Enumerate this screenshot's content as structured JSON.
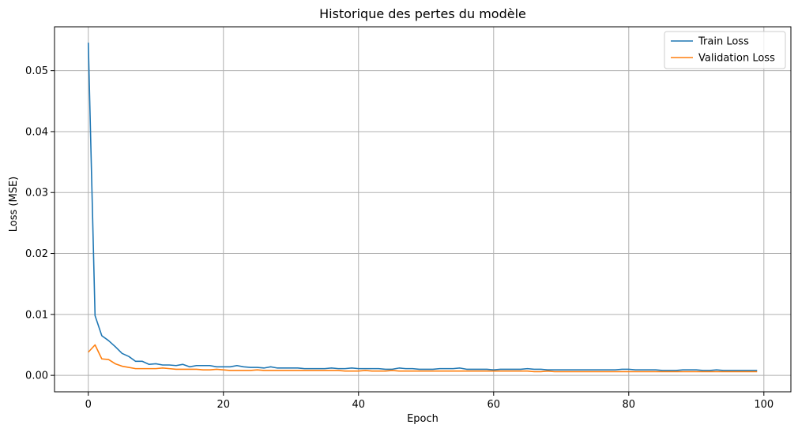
{
  "chart_data": {
    "type": "line",
    "title": "Historique des pertes du modèle",
    "xlabel": "Epoch",
    "ylabel": "Loss (MSE)",
    "xlim": [
      -5,
      104
    ],
    "ylim": [
      -0.0027,
      0.0572
    ],
    "xticks": [
      0,
      20,
      40,
      60,
      80,
      100
    ],
    "yticks": [
      0.0,
      0.01,
      0.02,
      0.03,
      0.04,
      0.05
    ],
    "ytick_labels": [
      "0.00",
      "0.01",
      "0.02",
      "0.03",
      "0.04",
      "0.05"
    ],
    "grid": true,
    "legend_position": "top-right",
    "series": [
      {
        "name": "Train Loss",
        "color": "#1f77b4",
        "values": [
          0.0546,
          0.0098,
          0.0065,
          0.0057,
          0.0047,
          0.0036,
          0.0031,
          0.0023,
          0.0023,
          0.0018,
          0.0019,
          0.0017,
          0.0017,
          0.0016,
          0.0018,
          0.0014,
          0.0016,
          0.0016,
          0.0016,
          0.0014,
          0.0014,
          0.0014,
          0.0016,
          0.0014,
          0.0013,
          0.0013,
          0.0012,
          0.0014,
          0.0012,
          0.0012,
          0.0012,
          0.0012,
          0.0011,
          0.0011,
          0.0011,
          0.0011,
          0.0012,
          0.0011,
          0.0011,
          0.0012,
          0.0011,
          0.0011,
          0.0011,
          0.0011,
          0.001,
          0.001,
          0.0012,
          0.0011,
          0.0011,
          0.001,
          0.001,
          0.001,
          0.0011,
          0.0011,
          0.0011,
          0.0012,
          0.001,
          0.001,
          0.001,
          0.001,
          0.0009,
          0.001,
          0.001,
          0.001,
          0.001,
          0.0011,
          0.001,
          0.001,
          0.0009,
          0.0009,
          0.0009,
          0.0009,
          0.0009,
          0.0009,
          0.0009,
          0.0009,
          0.0009,
          0.0009,
          0.0009,
          0.001,
          0.001,
          0.0009,
          0.0009,
          0.0009,
          0.0009,
          0.0008,
          0.0008,
          0.0008,
          0.0009,
          0.0009,
          0.0009,
          0.0008,
          0.0008,
          0.0009,
          0.0008,
          0.0008,
          0.0008,
          0.0008,
          0.0008,
          0.0008
        ]
      },
      {
        "name": "Validation Loss",
        "color": "#ff7f0e",
        "values": [
          0.0038,
          0.005,
          0.0027,
          0.0026,
          0.0019,
          0.0015,
          0.0013,
          0.0011,
          0.0011,
          0.0011,
          0.0011,
          0.0012,
          0.0011,
          0.001,
          0.001,
          0.001,
          0.001,
          0.0009,
          0.0009,
          0.001,
          0.0009,
          0.0008,
          0.0008,
          0.0008,
          0.0008,
          0.0009,
          0.0008,
          0.0008,
          0.0008,
          0.0008,
          0.0008,
          0.0008,
          0.0008,
          0.0008,
          0.0008,
          0.0008,
          0.0008,
          0.0008,
          0.0007,
          0.0007,
          0.0007,
          0.0008,
          0.0007,
          0.0007,
          0.0007,
          0.0008,
          0.0007,
          0.0007,
          0.0007,
          0.0007,
          0.0007,
          0.0007,
          0.0007,
          0.0007,
          0.0007,
          0.0007,
          0.0007,
          0.0007,
          0.0007,
          0.0007,
          0.0007,
          0.0007,
          0.0007,
          0.0007,
          0.0007,
          0.0007,
          0.0006,
          0.0006,
          0.0007,
          0.0006,
          0.0006,
          0.0006,
          0.0006,
          0.0006,
          0.0006,
          0.0006,
          0.0006,
          0.0006,
          0.0006,
          0.0006,
          0.0006,
          0.0006,
          0.0006,
          0.0006,
          0.0006,
          0.0006,
          0.0006,
          0.0006,
          0.0006,
          0.0006,
          0.0006,
          0.0006,
          0.0006,
          0.0006,
          0.0006,
          0.0006,
          0.0006,
          0.0006,
          0.0006,
          0.0006
        ]
      }
    ]
  }
}
